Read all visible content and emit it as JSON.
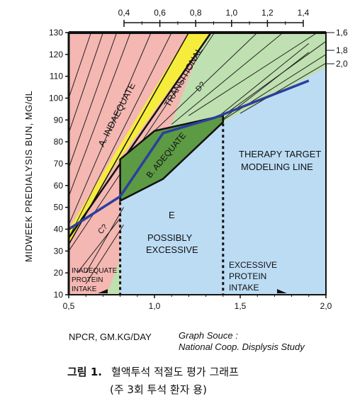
{
  "chart_data": {
    "type": "area",
    "ylabel": "MIDWEEK PREDIALYSIS BUN, MG/dL",
    "xlabel": "NPCR, GM.KG/DAY",
    "source_line1": "Graph Souce :",
    "source_line2": "National Coop. Displysis Study",
    "xlim": [
      0.5,
      2.0
    ],
    "ylim": [
      10,
      130
    ],
    "x_ticks": [
      "0,5",
      "1,0",
      "1,5",
      "2,0"
    ],
    "y_ticks": [
      "10",
      "20",
      "30",
      "40",
      "50",
      "60",
      "70",
      "80",
      "90",
      "100",
      "110",
      "120",
      "130"
    ],
    "top_ticks": [
      "0,4",
      "0,6",
      "0,8",
      "1,0",
      "1,2",
      "1,4"
    ],
    "right_labels": [
      "1,6",
      "1,8",
      "2,0"
    ],
    "regions": [
      {
        "name": "A. INDAEQUATE",
        "color": "#f4b7b2"
      },
      {
        "name": "TRANSITIONAL",
        "color": "#f5ec3c"
      },
      {
        "name": "B. ADEQUATE",
        "color": "#5c9a44"
      },
      {
        "name": "C?",
        "color": "#f4b7b2"
      },
      {
        "name": "D?",
        "color": "#bfe0b0"
      },
      {
        "name": "E",
        "color": "#bcdcf4"
      },
      {
        "name": "INADEQUATE PROTEIN INTAKE",
        "color": "#f4b7b2"
      },
      {
        "name": "EXCESSIVE PROTEIN INTAKE",
        "color": "#bcdcf4"
      }
    ],
    "region_labels": {
      "inadequate": "A. INDAEQUATE",
      "transitional": "TRANSITIONAL",
      "adequate": "B. ADEQUATE",
      "c": "C?",
      "d": "D?",
      "e": "E",
      "possibly": [
        "POSSIBLY",
        "EXCESSIVE"
      ],
      "therapy": [
        "THERAPY TARGET",
        "MODELING LINE"
      ],
      "inadequate_intake": [
        "INADEQUATE",
        "PROTEIN",
        "INTAKE"
      ],
      "excessive_intake": [
        "EXCESSIVE",
        "PROTEIN",
        "INTAKE"
      ]
    },
    "therapy_target_line": {
      "x": [
        0.8,
        1.05,
        1.35,
        1.9
      ],
      "y": [
        55,
        84,
        91,
        108
      ]
    },
    "adequate_polygon": {
      "x": [
        0.8,
        0.8,
        1.0,
        1.4,
        1.4,
        1.05
      ],
      "y": [
        53,
        72,
        85,
        92,
        89,
        63
      ]
    },
    "dashed_vertical_lines_x": [
      0.8,
      1.4
    ],
    "colors": {
      "pink": "#f4b7b2",
      "yellow": "#f5ec3c",
      "light_green": "#bfe0b0",
      "dark_green": "#5c9a44",
      "blue": "#bcdcf4",
      "therapy_line": "#2b3f9e"
    }
  },
  "caption": {
    "line1_prefix": "그림 1.",
    "line1_text": "혈액투석 적절도 평가 그래프",
    "line2": "(주 3회 투석 환자 용)"
  }
}
